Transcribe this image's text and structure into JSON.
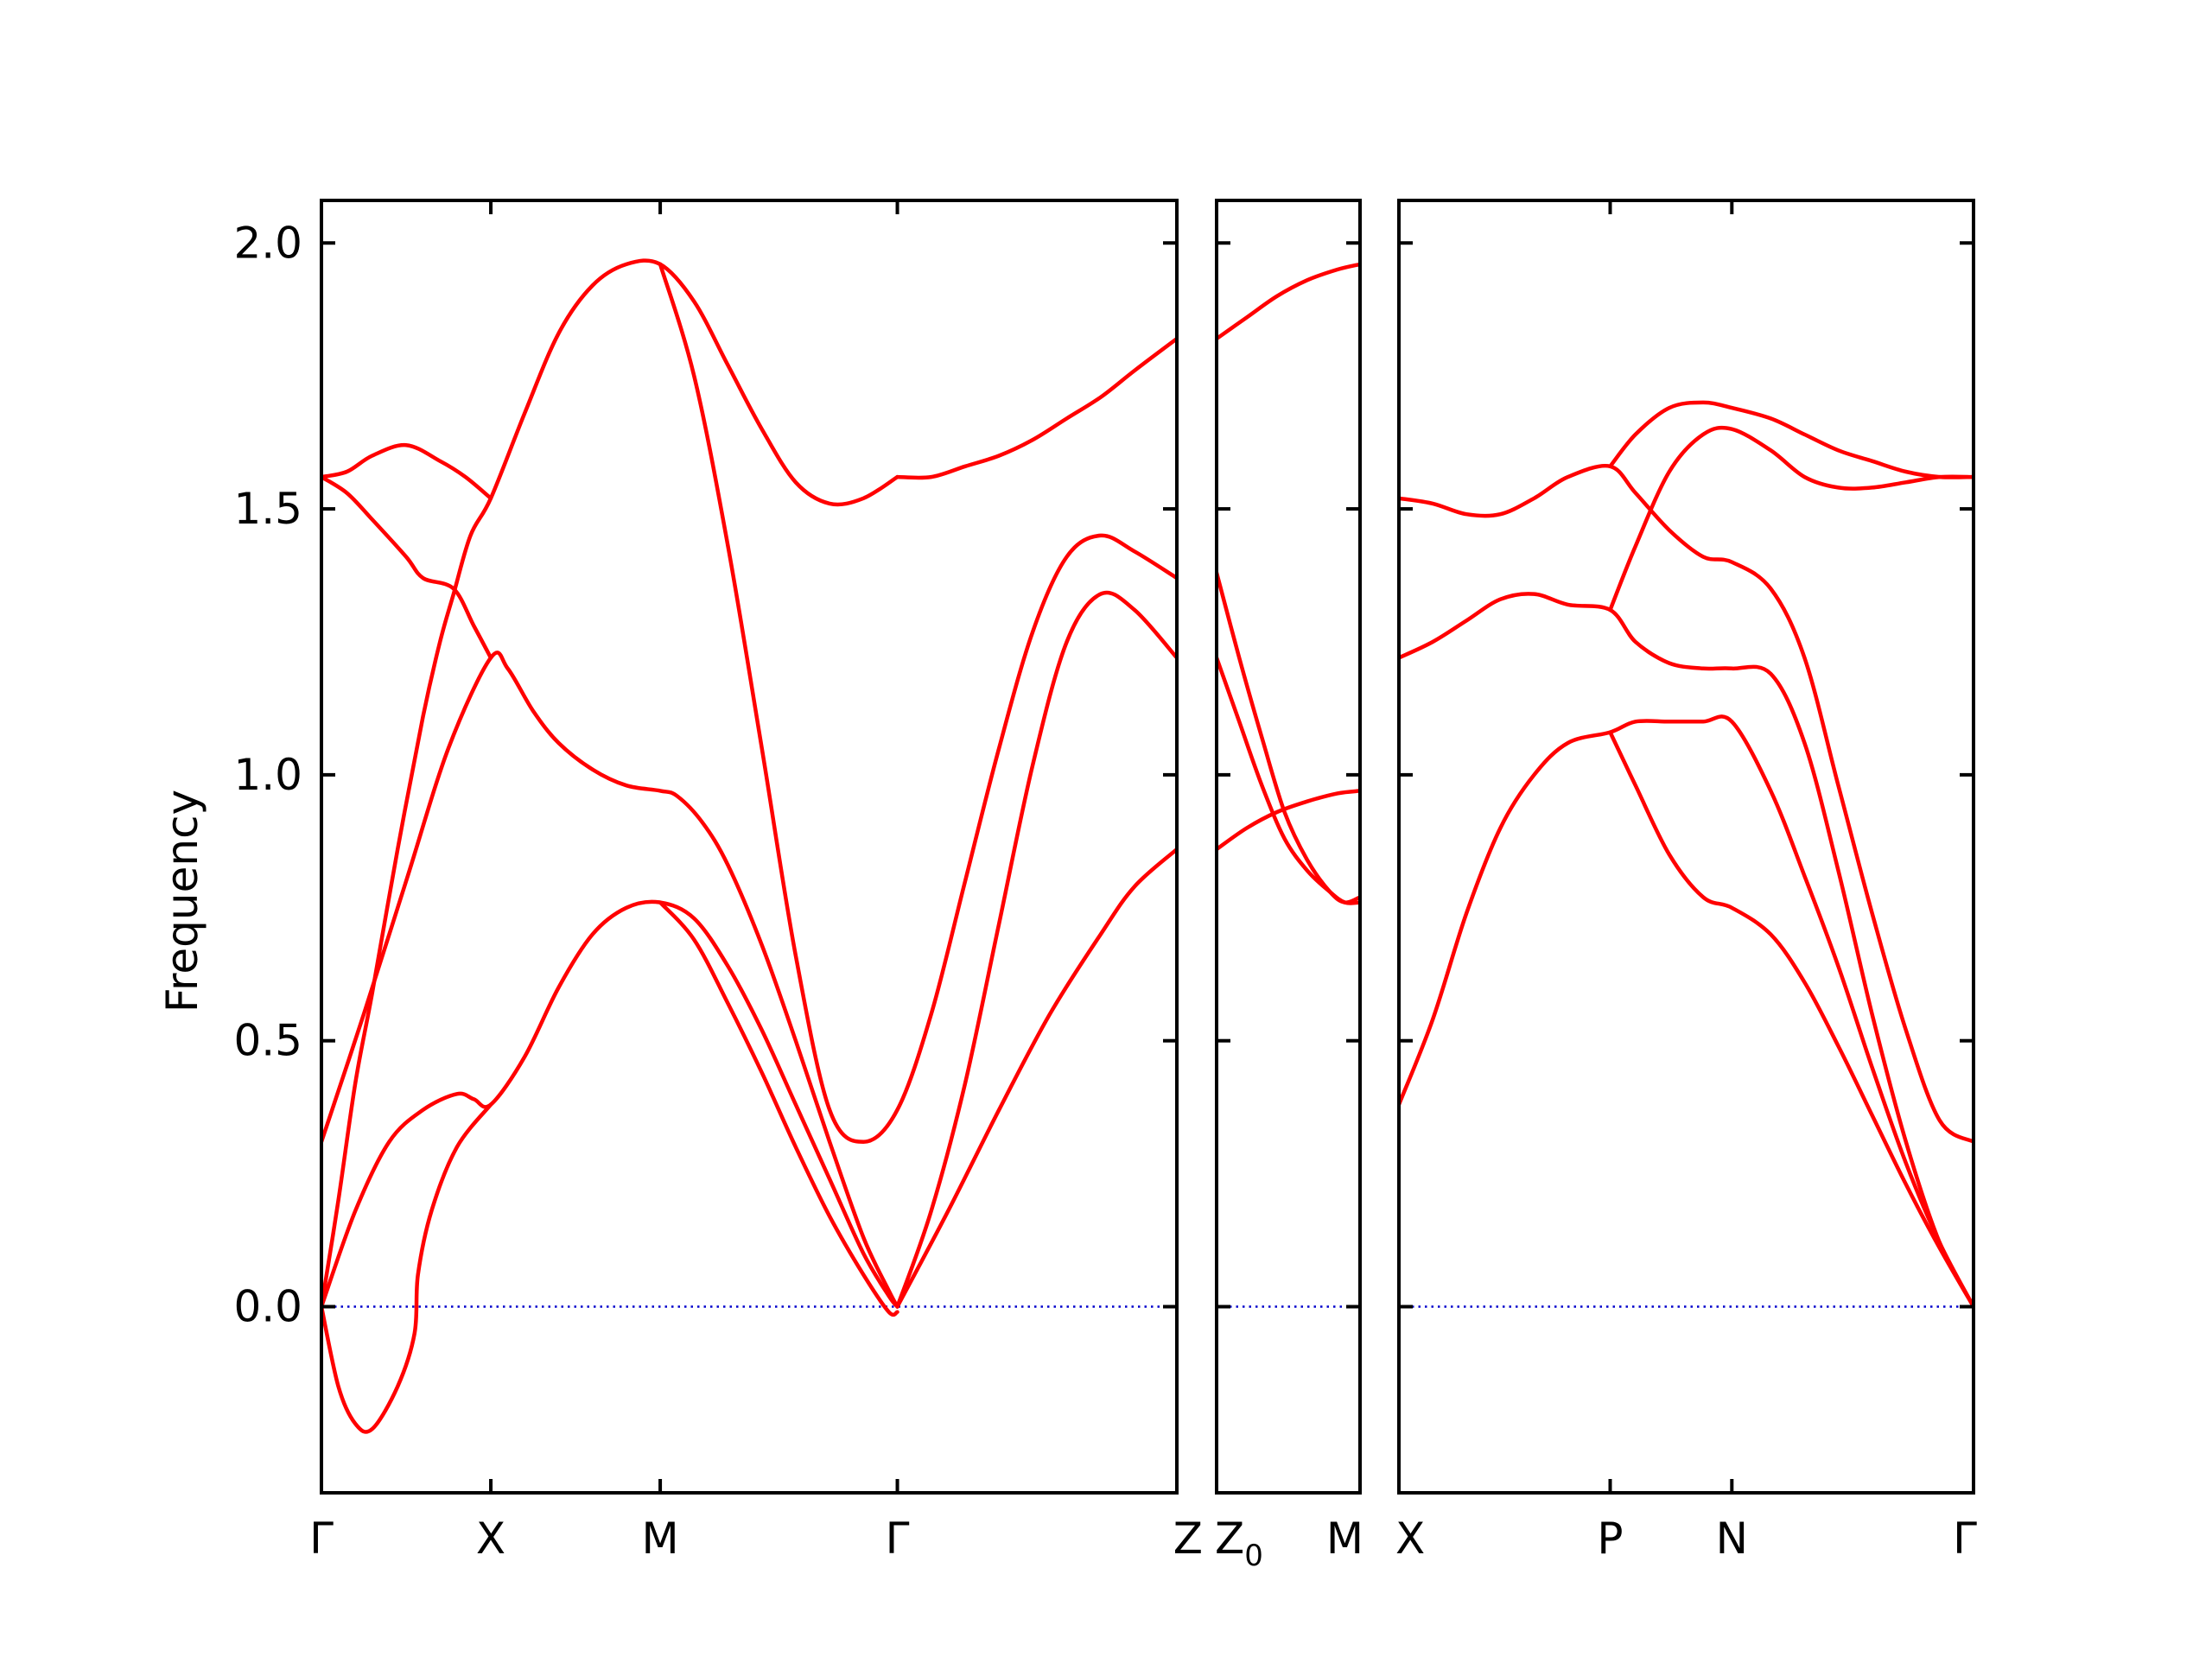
{
  "chart_data": {
    "type": "line",
    "ylabel": "Frequency",
    "xlabel": "",
    "ylim": [
      -0.35,
      2.08
    ],
    "yticks": [
      "0.0",
      "0.5",
      "1.0",
      "1.5",
      "2.0"
    ],
    "grid": false,
    "colors": {
      "bands": "#ff0000",
      "zero_line": "#0000cc",
      "frame": "#000000"
    },
    "panels": [
      {
        "name": "panel-1",
        "xlim": [
          0,
          5.05
        ],
        "ticks": [
          {
            "x": 0,
            "label": "Γ"
          },
          {
            "x": 1.0,
            "label": "X"
          },
          {
            "x": 2.0,
            "label": "M"
          },
          {
            "x": 3.4,
            "label": "Γ"
          },
          {
            "x": 5.05,
            "label": "Z"
          }
        ],
        "bands": [
          [
            [
              0,
              0.31
            ],
            [
              0.25,
              0.55
            ],
            [
              0.5,
              0.8
            ],
            [
              0.75,
              1.05
            ],
            [
              1.0,
              1.22
            ],
            [
              1.1,
              1.2
            ],
            [
              1.25,
              1.12
            ],
            [
              1.4,
              1.06
            ],
            [
              1.6,
              1.01
            ],
            [
              1.8,
              0.98
            ],
            [
              2.0,
              0.97
            ],
            [
              2.1,
              0.96
            ],
            [
              2.25,
              0.91
            ],
            [
              2.4,
              0.83
            ],
            [
              2.6,
              0.68
            ],
            [
              2.8,
              0.5
            ],
            [
              3.0,
              0.31
            ],
            [
              3.2,
              0.13
            ],
            [
              3.35,
              0.03
            ],
            [
              3.4,
              0.0
            ]
          ],
          [
            [
              0,
              0.0
            ],
            [
              0.1,
              0.2
            ],
            [
              0.2,
              0.42
            ],
            [
              0.3,
              0.59
            ],
            [
              0.45,
              0.86
            ],
            [
              0.6,
              1.11
            ],
            [
              0.7,
              1.25
            ],
            [
              0.78,
              1.34
            ],
            [
              0.88,
              1.45
            ],
            [
              1.0,
              1.52
            ],
            [
              1.2,
              1.68
            ],
            [
              1.4,
              1.83
            ],
            [
              1.6,
              1.92
            ],
            [
              1.8,
              1.96
            ],
            [
              2.0,
              1.96
            ],
            [
              2.2,
              1.89
            ],
            [
              2.4,
              1.77
            ],
            [
              2.6,
              1.65
            ],
            [
              2.8,
              1.55
            ],
            [
              3.0,
              1.51
            ],
            [
              3.2,
              1.52
            ],
            [
              3.4,
              1.56
            ]
          ],
          [
            [
              0,
              1.56
            ],
            [
              0.15,
              1.53
            ],
            [
              0.3,
              1.48
            ],
            [
              0.5,
              1.41
            ],
            [
              0.6,
              1.37
            ],
            [
              0.78,
              1.35
            ],
            [
              0.9,
              1.28
            ],
            [
              1.0,
              1.22
            ]
          ],
          [
            [
              0,
              1.56
            ],
            [
              0.15,
              1.57
            ],
            [
              0.3,
              1.6
            ],
            [
              0.5,
              1.62
            ],
            [
              0.7,
              1.59
            ],
            [
              0.85,
              1.56
            ],
            [
              1.0,
              1.52
            ]
          ],
          [
            [
              0,
              0.0
            ],
            [
              0.1,
              -0.15
            ],
            [
              0.2,
              -0.22
            ],
            [
              0.3,
              -0.23
            ],
            [
              0.45,
              -0.15
            ],
            [
              0.55,
              -0.05
            ],
            [
              0.57,
              0.06
            ],
            [
              0.65,
              0.18
            ],
            [
              0.8,
              0.3
            ],
            [
              1.0,
              0.38
            ]
          ],
          [
            [
              0,
              0.0
            ],
            [
              0.2,
              0.18
            ],
            [
              0.4,
              0.31
            ],
            [
              0.6,
              0.37
            ],
            [
              0.8,
              0.4
            ],
            [
              0.9,
              0.39
            ],
            [
              1.0,
              0.38
            ],
            [
              1.2,
              0.47
            ],
            [
              1.4,
              0.6
            ],
            [
              1.6,
              0.7
            ],
            [
              1.8,
              0.75
            ],
            [
              2.0,
              0.76
            ],
            [
              2.2,
              0.73
            ],
            [
              2.4,
              0.64
            ],
            [
              2.6,
              0.52
            ],
            [
              2.8,
              0.38
            ],
            [
              3.0,
              0.24
            ],
            [
              3.2,
              0.1
            ],
            [
              3.35,
              0.02
            ],
            [
              3.4,
              0.0
            ]
          ],
          [
            [
              2.0,
              0.76
            ],
            [
              2.2,
              0.69
            ],
            [
              2.4,
              0.57
            ],
            [
              2.6,
              0.44
            ],
            [
              2.8,
              0.3
            ],
            [
              3.0,
              0.17
            ],
            [
              3.2,
              0.06
            ],
            [
              3.35,
              -0.01
            ],
            [
              3.4,
              -0.01
            ]
          ],
          [
            [
              2.0,
              1.96
            ],
            [
              2.2,
              1.75
            ],
            [
              2.4,
              1.43
            ],
            [
              2.6,
              1.05
            ],
            [
              2.8,
              0.66
            ],
            [
              3.0,
              0.37
            ],
            [
              3.2,
              0.31
            ],
            [
              3.4,
              0.37
            ],
            [
              3.6,
              0.55
            ],
            [
              3.8,
              0.8
            ],
            [
              4.0,
              1.05
            ],
            [
              4.2,
              1.27
            ],
            [
              4.4,
              1.41
            ],
            [
              4.6,
              1.45
            ],
            [
              4.8,
              1.42
            ],
            [
              5.05,
              1.37
            ]
          ],
          [
            [
              3.4,
              0.0
            ],
            [
              3.6,
              0.18
            ],
            [
              3.8,
              0.42
            ],
            [
              4.0,
              0.72
            ],
            [
              4.2,
              1.02
            ],
            [
              4.4,
              1.25
            ],
            [
              4.6,
              1.34
            ],
            [
              4.8,
              1.31
            ],
            [
              5.05,
              1.22
            ]
          ],
          [
            [
              3.4,
              0.0
            ],
            [
              3.7,
              0.18
            ],
            [
              4.0,
              0.37
            ],
            [
              4.3,
              0.55
            ],
            [
              4.6,
              0.7
            ],
            [
              4.8,
              0.79
            ],
            [
              5.05,
              0.86
            ]
          ],
          [
            [
              3.4,
              1.56
            ],
            [
              3.6,
              1.56
            ],
            [
              3.8,
              1.58
            ],
            [
              4.0,
              1.6
            ],
            [
              4.2,
              1.63
            ],
            [
              4.4,
              1.67
            ],
            [
              4.6,
              1.71
            ],
            [
              4.8,
              1.76
            ],
            [
              5.05,
              1.82
            ]
          ]
        ]
      },
      {
        "name": "panel-2",
        "xlim": [
          0,
          0.95
        ],
        "ticks": [
          {
            "x": 0,
            "label": "Z",
            "sub": "0"
          },
          {
            "x": 0.95,
            "label": "M"
          }
        ],
        "bands": [
          [
            [
              0,
              1.82
            ],
            [
              0.2,
              1.86
            ],
            [
              0.4,
              1.9
            ],
            [
              0.6,
              1.93
            ],
            [
              0.8,
              1.95
            ],
            [
              0.95,
              1.96
            ]
          ],
          [
            [
              0,
              1.38
            ],
            [
              0.15,
              1.22
            ],
            [
              0.3,
              1.07
            ],
            [
              0.45,
              0.93
            ],
            [
              0.6,
              0.84
            ],
            [
              0.75,
              0.78
            ],
            [
              0.85,
              0.76
            ],
            [
              0.95,
              0.77
            ]
          ],
          [
            [
              0,
              1.22
            ],
            [
              0.15,
              1.1
            ],
            [
              0.3,
              0.98
            ],
            [
              0.45,
              0.88
            ],
            [
              0.6,
              0.82
            ],
            [
              0.75,
              0.78
            ],
            [
              0.85,
              0.76
            ],
            [
              0.95,
              0.76
            ]
          ],
          [
            [
              0,
              0.86
            ],
            [
              0.2,
              0.9
            ],
            [
              0.4,
              0.93
            ],
            [
              0.6,
              0.95
            ],
            [
              0.8,
              0.965
            ],
            [
              0.95,
              0.97
            ]
          ]
        ]
      },
      {
        "name": "panel-3",
        "xlim": [
          0,
          3.4
        ],
        "ticks": [
          {
            "x": 0,
            "label": "X"
          },
          {
            "x": 1.25,
            "label": "P"
          },
          {
            "x": 1.97,
            "label": "N"
          },
          {
            "x": 3.4,
            "label": "Γ"
          }
        ],
        "bands": [
          [
            [
              0,
              0.38
            ],
            [
              0.2,
              0.54
            ],
            [
              0.4,
              0.74
            ],
            [
              0.6,
              0.9
            ],
            [
              0.8,
              1.0
            ],
            [
              1.0,
              1.06
            ],
            [
              1.25,
              1.08
            ],
            [
              1.4,
              1.1
            ],
            [
              1.6,
              1.1
            ],
            [
              1.8,
              1.1
            ],
            [
              1.97,
              1.1
            ],
            [
              2.2,
              0.97
            ],
            [
              2.4,
              0.81
            ],
            [
              2.6,
              0.64
            ],
            [
              2.8,
              0.45
            ],
            [
              3.0,
              0.27
            ],
            [
              3.2,
              0.12
            ],
            [
              3.4,
              0.0
            ]
          ],
          [
            [
              1.25,
              1.08
            ],
            [
              1.4,
              0.98
            ],
            [
              1.6,
              0.85
            ],
            [
              1.8,
              0.77
            ],
            [
              1.97,
              0.75
            ],
            [
              2.2,
              0.7
            ],
            [
              2.4,
              0.61
            ],
            [
              2.6,
              0.49
            ],
            [
              2.8,
              0.36
            ],
            [
              3.0,
              0.23
            ],
            [
              3.2,
              0.11
            ],
            [
              3.4,
              0.0
            ]
          ],
          [
            [
              0,
              1.22
            ],
            [
              0.2,
              1.25
            ],
            [
              0.4,
              1.29
            ],
            [
              0.6,
              1.33
            ],
            [
              0.8,
              1.34
            ],
            [
              1.0,
              1.32
            ],
            [
              1.25,
              1.31
            ],
            [
              1.4,
              1.25
            ],
            [
              1.6,
              1.21
            ],
            [
              1.8,
              1.2
            ],
            [
              1.97,
              1.2
            ],
            [
              2.2,
              1.19
            ],
            [
              2.4,
              1.06
            ],
            [
              2.6,
              0.82
            ],
            [
              2.8,
              0.55
            ],
            [
              3.0,
              0.31
            ],
            [
              3.2,
              0.12
            ],
            [
              3.4,
              0.0
            ]
          ],
          [
            [
              0,
              1.52
            ],
            [
              0.2,
              1.51
            ],
            [
              0.4,
              1.49
            ],
            [
              0.6,
              1.49
            ],
            [
              0.8,
              1.52
            ],
            [
              1.0,
              1.56
            ],
            [
              1.25,
              1.58
            ],
            [
              1.4,
              1.53
            ],
            [
              1.6,
              1.46
            ],
            [
              1.8,
              1.41
            ],
            [
              1.97,
              1.4
            ],
            [
              2.2,
              1.35
            ],
            [
              2.4,
              1.22
            ],
            [
              2.6,
              0.98
            ],
            [
              2.8,
              0.74
            ],
            [
              3.0,
              0.52
            ],
            [
              3.2,
              0.35
            ],
            [
              3.4,
              0.31
            ]
          ],
          [
            [
              1.25,
              1.31
            ],
            [
              1.4,
              1.43
            ],
            [
              1.6,
              1.57
            ],
            [
              1.8,
              1.64
            ],
            [
              1.97,
              1.65
            ],
            [
              2.2,
              1.61
            ],
            [
              2.4,
              1.56
            ],
            [
              2.6,
              1.54
            ],
            [
              2.8,
              1.54
            ],
            [
              3.0,
              1.55
            ],
            [
              3.2,
              1.56
            ],
            [
              3.4,
              1.56
            ]
          ],
          [
            [
              1.25,
              1.58
            ],
            [
              1.4,
              1.64
            ],
            [
              1.6,
              1.69
            ],
            [
              1.8,
              1.7
            ],
            [
              1.97,
              1.69
            ],
            [
              2.2,
              1.67
            ],
            [
              2.4,
              1.64
            ],
            [
              2.6,
              1.61
            ],
            [
              2.8,
              1.59
            ],
            [
              3.0,
              1.57
            ],
            [
              3.2,
              1.56
            ],
            [
              3.4,
              1.56
            ]
          ]
        ]
      }
    ]
  }
}
